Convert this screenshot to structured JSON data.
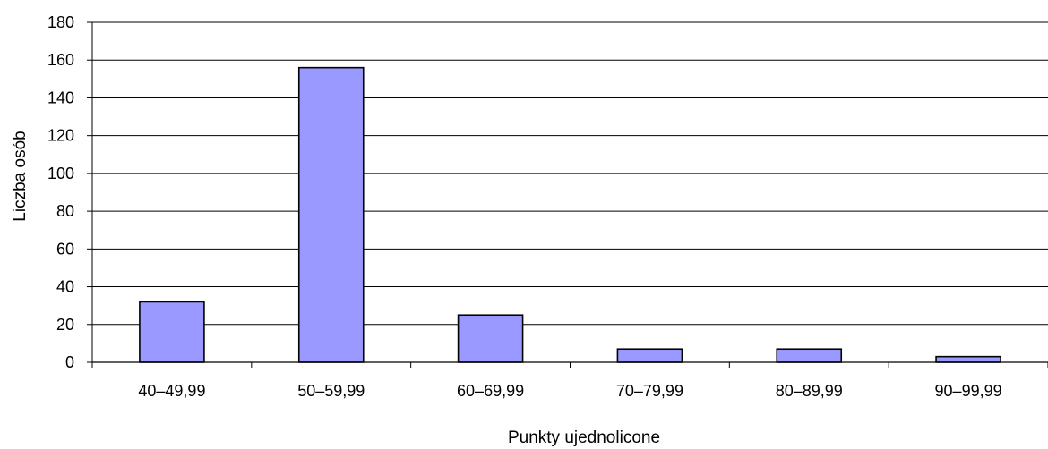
{
  "chart_data": {
    "type": "bar",
    "title": "",
    "xlabel": "Punkty ujednolicone",
    "ylabel": "Liczba osób",
    "categories": [
      "40–49,99",
      "50–59,99",
      "60–69,99",
      "70–79,99",
      "80–89,99",
      "90–99,99"
    ],
    "values": [
      32,
      156,
      25,
      7,
      7,
      3
    ],
    "ylim": [
      0,
      180
    ],
    "yticks": [
      0,
      20,
      40,
      60,
      80,
      100,
      120,
      140,
      160,
      180
    ],
    "grid": true,
    "legend": "none",
    "colors": {
      "bar_fill": "#9999ff",
      "bar_stroke": "#000000",
      "grid": "#000000",
      "axis": "#000000"
    }
  }
}
